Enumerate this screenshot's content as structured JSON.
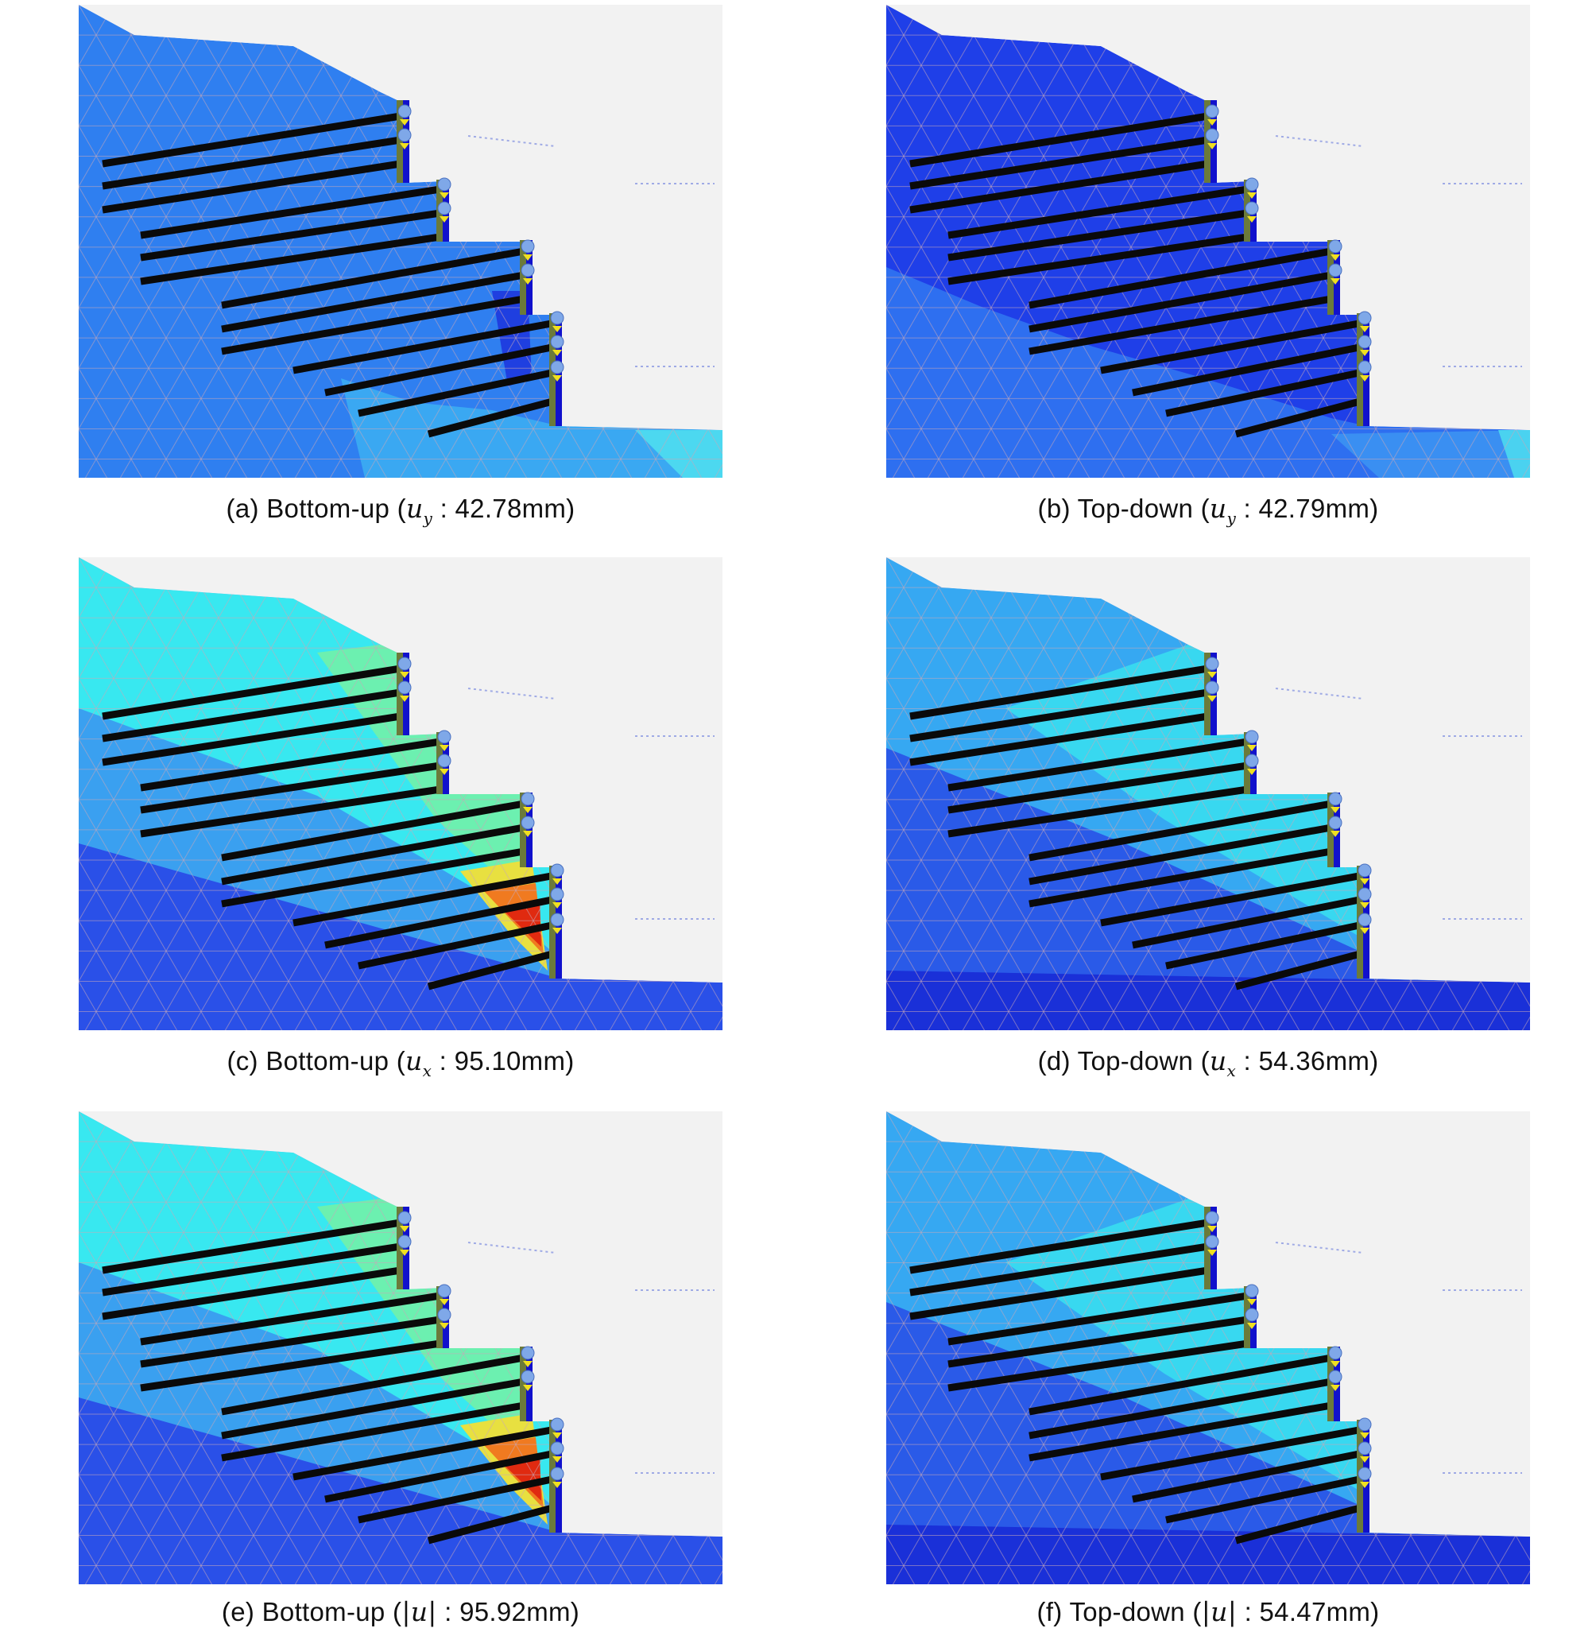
{
  "figure": {
    "panels": [
      {
        "id": "a",
        "prefix": "(a) Bottom-up (",
        "symbol": "u",
        "sub": "y",
        "bars": false,
        "value": "42.78mm)",
        "palette": "uy_bottom"
      },
      {
        "id": "b",
        "prefix": "(b) Top-down (",
        "symbol": "u",
        "sub": "y",
        "bars": false,
        "value": "42.79mm)",
        "palette": "uy_top"
      },
      {
        "id": "c",
        "prefix": "(c) Bottom-up (",
        "symbol": "u",
        "sub": "x",
        "bars": false,
        "value": "95.10mm)",
        "palette": "ux_bottom"
      },
      {
        "id": "d",
        "prefix": "(d) Top-down (",
        "symbol": "u",
        "sub": "x",
        "bars": false,
        "value": "54.36mm)",
        "palette": "ux_top"
      },
      {
        "id": "e",
        "prefix": "(e) Bottom-up (",
        "symbol": "u",
        "sub": "",
        "bars": true,
        "value": "95.92mm)",
        "palette": "u_bottom"
      },
      {
        "id": "f",
        "prefix": "(f) Top-down (",
        "symbol": "u",
        "sub": "",
        "bars": true,
        "value": "54.47mm)",
        "palette": "u_top"
      }
    ],
    "caption_separator": " : ",
    "colors": {
      "background": "#f2f2f2",
      "mesh": "#c8a8b8",
      "nail": "#0a0a0a",
      "wall": "#1111cc",
      "facing": "#6b7a3a",
      "anchor": "#7fa8e8",
      "anchor_mark": "#f0e020"
    }
  }
}
